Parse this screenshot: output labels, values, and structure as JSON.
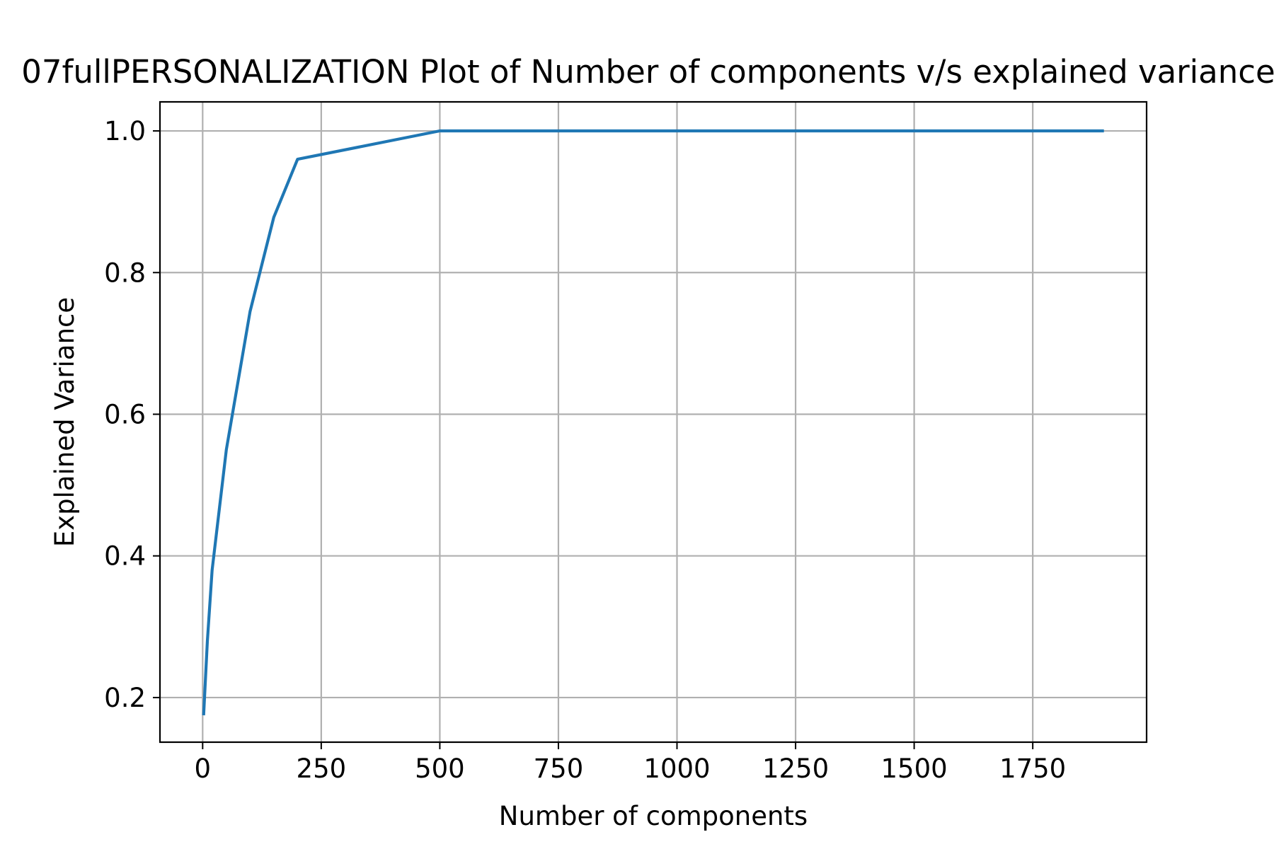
{
  "chart_data": {
    "type": "line",
    "title": "07fullPERSONALIZATION Plot of Number of components v/s explained variance",
    "xlabel": "Number of components",
    "ylabel": "Explained Variance",
    "xlim": [
      -90,
      1990
    ],
    "ylim": [
      0.137,
      1.041
    ],
    "xticks": [
      0,
      250,
      500,
      750,
      1000,
      1250,
      1500,
      1750
    ],
    "yticks": [
      0.2,
      0.4,
      0.6,
      0.8,
      1.0
    ],
    "xtick_labels": [
      "0",
      "250",
      "500",
      "750",
      "1000",
      "1250",
      "1500",
      "1750"
    ],
    "ytick_labels": [
      "0.2",
      "0.4",
      "0.6",
      "0.8",
      "1.0"
    ],
    "grid": true,
    "series": [
      {
        "color": "#1f77b4",
        "x": [
          2,
          10,
          20,
          50,
          100,
          150,
          200,
          500,
          1000,
          1500,
          1900
        ],
        "y": [
          0.175,
          0.28,
          0.38,
          0.55,
          0.745,
          0.878,
          0.96,
          1.0,
          1.0,
          1.0,
          1.0
        ]
      }
    ]
  }
}
